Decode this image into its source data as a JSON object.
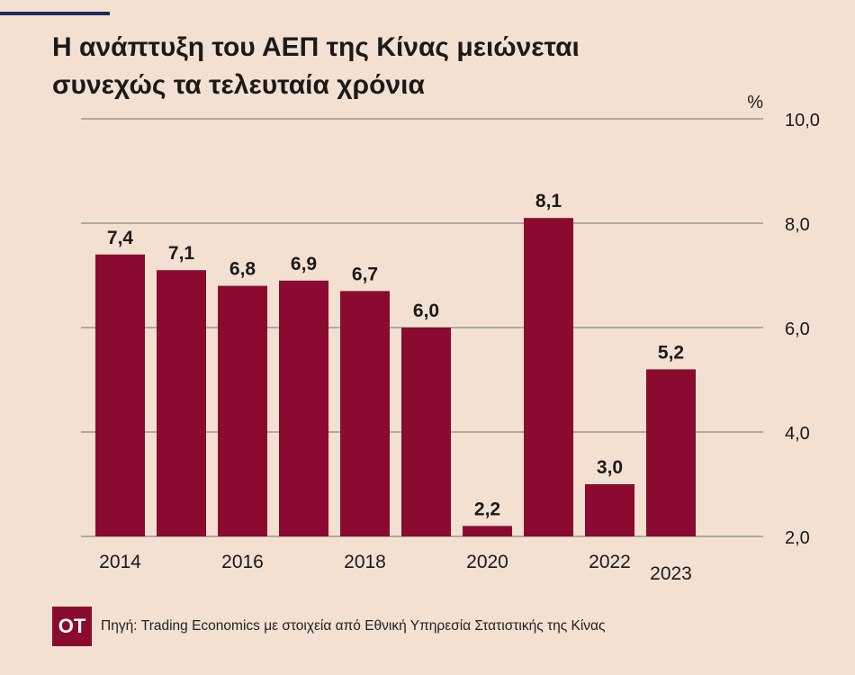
{
  "title_line1": "Η ανάπτυξη του ΑΕΠ της Κίνας μειώνεται",
  "title_line2": "συνεχώς τα τελευταία χρόνια",
  "unit": "%",
  "logo": "ΟΤ",
  "source": "Πηγή: Trading Economics με στοιχεία από Εθνική Υπηρεσία Στατιστικής της Κίνας",
  "colors": {
    "background": "#f3e0d0",
    "bar": "#8a0a30",
    "grid": "#888888",
    "text": "#1a1a1a"
  },
  "chart_data": {
    "type": "bar",
    "categories": [
      "2014",
      "2015",
      "2016",
      "2017",
      "2018",
      "2019",
      "2020",
      "2021",
      "2022",
      "2023"
    ],
    "category_labels": [
      "2014",
      "",
      "2016",
      "",
      "2018",
      "",
      "2020",
      "",
      "2022",
      "2023"
    ],
    "values": [
      7.4,
      7.1,
      6.8,
      6.9,
      6.7,
      6.0,
      2.2,
      8.1,
      3.0,
      5.2
    ],
    "value_labels": [
      "7,4",
      "7,1",
      "6,8",
      "6,9",
      "6,7",
      "6,0",
      "2,2",
      "8,1",
      "3,0",
      "5,2"
    ],
    "y_ticks": [
      2.0,
      4.0,
      6.0,
      8.0,
      10.0
    ],
    "y_tick_labels": [
      "2,0",
      "4,0",
      "6,0",
      "8,0",
      "10,0"
    ],
    "ylim": [
      2.0,
      10.0
    ],
    "y_axis_position": "right",
    "grid": true,
    "title": "Η ανάπτυξη του ΑΕΠ της Κίνας μειώνεται συνεχώς τα τελευταία χρόνια",
    "xlabel": "",
    "ylabel": "%"
  }
}
